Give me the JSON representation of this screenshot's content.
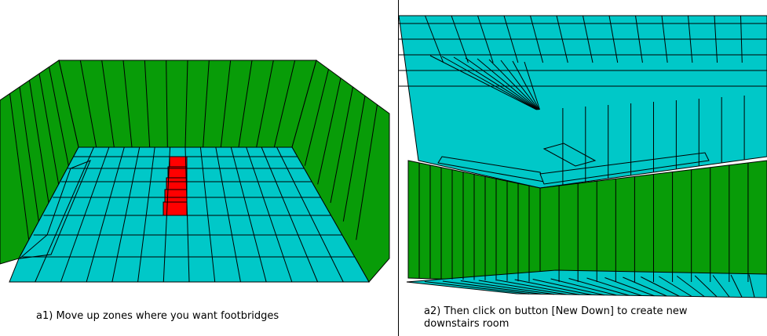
{
  "panels": [
    {
      "id": "a1",
      "caption": "a1) Move up zones where you want footbridges"
    },
    {
      "id": "a2",
      "caption_lines": [
        "a2) Then click on button [New Down] to create new",
        "downstairs  room"
      ]
    }
  ],
  "colors": {
    "wall": "#089c08",
    "floor": "#00c8c8",
    "highlight": "#ff0000",
    "grid": "#000000"
  },
  "icons": [
    "room-3d-view-top",
    "room-3d-view-bottom"
  ]
}
